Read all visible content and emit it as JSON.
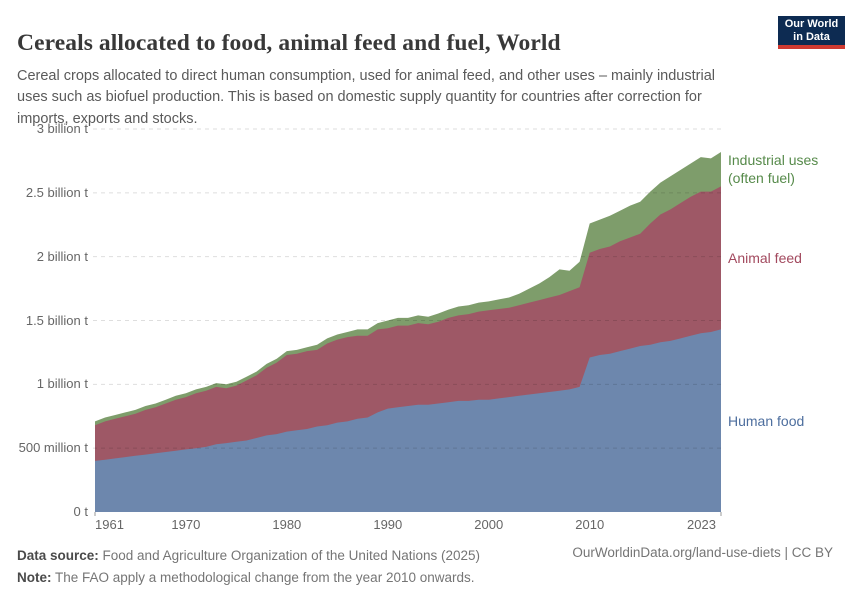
{
  "header": {
    "title": "Cereals allocated to food, animal feed and fuel, World",
    "subtitle": "Cereal crops allocated to direct human consumption, used for animal feed, and other uses – mainly industrial uses such as biofuel production. This is based on domestic supply quantity for countries after correction for imports, exports and stocks.",
    "logo": {
      "line1": "Our World",
      "line2": "in Data",
      "bg_color": "#0d2b52",
      "accent_color": "#cf3a31"
    }
  },
  "footer": {
    "source_label": "Data source:",
    "source_text": " Food and Agriculture Organization of the United Nations (2025)",
    "note_label": "Note:",
    "note_text": " The FAO apply a methodological change from the year 2010 onwards.",
    "link": "OurWorldinData.org/land-use-diets | CC BY"
  },
  "chart_data": {
    "type": "area",
    "stacked": true,
    "title": "Cereals allocated to food, animal feed and fuel, World",
    "unit": "tonnes",
    "grid": true,
    "legend_position": "right",
    "xlim": [
      1961,
      2023
    ],
    "ylim": [
      0,
      3
    ],
    "x_ticks": [
      1961,
      1970,
      1980,
      1990,
      2000,
      2010,
      2023
    ],
    "y_ticks": [
      {
        "v": 0,
        "label": "0 t"
      },
      {
        "v": 0.5,
        "label": "500 million t"
      },
      {
        "v": 1,
        "label": "1 billion t"
      },
      {
        "v": 1.5,
        "label": "1.5 billion t"
      },
      {
        "v": 2,
        "label": "2 billion t"
      },
      {
        "v": 2.5,
        "label": "2.5 billion t"
      },
      {
        "v": 3,
        "label": "3 billion t"
      }
    ],
    "x": [
      1961,
      1962,
      1963,
      1964,
      1965,
      1966,
      1967,
      1968,
      1969,
      1970,
      1971,
      1972,
      1973,
      1974,
      1975,
      1976,
      1977,
      1978,
      1979,
      1980,
      1981,
      1982,
      1983,
      1984,
      1985,
      1986,
      1987,
      1988,
      1989,
      1990,
      1991,
      1992,
      1993,
      1994,
      1995,
      1996,
      1997,
      1998,
      1999,
      2000,
      2001,
      2002,
      2003,
      2004,
      2005,
      2006,
      2007,
      2008,
      2009,
      2010,
      2011,
      2012,
      2013,
      2014,
      2015,
      2016,
      2017,
      2018,
      2019,
      2020,
      2021,
      2022,
      2023
    ],
    "series": [
      {
        "name": "Human food",
        "label_lines": [
          "Human food"
        ],
        "color": "#6d87ad",
        "label_color": "#4d6e9e",
        "unit": "billion t",
        "values": [
          0.4,
          0.41,
          0.42,
          0.43,
          0.44,
          0.45,
          0.46,
          0.47,
          0.48,
          0.49,
          0.5,
          0.51,
          0.53,
          0.54,
          0.55,
          0.56,
          0.58,
          0.6,
          0.61,
          0.63,
          0.64,
          0.65,
          0.67,
          0.68,
          0.7,
          0.71,
          0.73,
          0.74,
          0.78,
          0.81,
          0.82,
          0.83,
          0.84,
          0.84,
          0.85,
          0.86,
          0.87,
          0.87,
          0.88,
          0.88,
          0.89,
          0.9,
          0.91,
          0.92,
          0.93,
          0.94,
          0.95,
          0.96,
          0.98,
          1.21,
          1.23,
          1.24,
          1.26,
          1.28,
          1.3,
          1.31,
          1.33,
          1.34,
          1.36,
          1.38,
          1.4,
          1.41,
          1.43
        ]
      },
      {
        "name": "Animal feed",
        "label_lines": [
          "Animal feed"
        ],
        "color": "#9e5866",
        "label_color": "#a2495e",
        "unit": "billion t",
        "values": [
          0.28,
          0.3,
          0.31,
          0.32,
          0.33,
          0.35,
          0.36,
          0.38,
          0.4,
          0.41,
          0.43,
          0.44,
          0.45,
          0.43,
          0.44,
          0.47,
          0.49,
          0.53,
          0.56,
          0.6,
          0.6,
          0.61,
          0.6,
          0.64,
          0.65,
          0.66,
          0.65,
          0.64,
          0.65,
          0.63,
          0.64,
          0.63,
          0.64,
          0.63,
          0.64,
          0.66,
          0.67,
          0.68,
          0.69,
          0.7,
          0.7,
          0.7,
          0.71,
          0.72,
          0.73,
          0.74,
          0.75,
          0.77,
          0.78,
          0.82,
          0.83,
          0.84,
          0.86,
          0.87,
          0.88,
          0.95,
          1.0,
          1.03,
          1.06,
          1.09,
          1.11,
          1.1,
          1.12
        ]
      },
      {
        "name": "Industrial uses (often fuel)",
        "label_lines": [
          "Industrial uses",
          "(often fuel)"
        ],
        "color": "#7e9d6b",
        "label_color": "#568a4a",
        "unit": "billion t",
        "values": [
          0.03,
          0.03,
          0.03,
          0.03,
          0.03,
          0.03,
          0.03,
          0.03,
          0.03,
          0.03,
          0.03,
          0.03,
          0.03,
          0.03,
          0.03,
          0.03,
          0.03,
          0.03,
          0.03,
          0.03,
          0.03,
          0.03,
          0.04,
          0.04,
          0.04,
          0.04,
          0.05,
          0.05,
          0.05,
          0.06,
          0.06,
          0.06,
          0.06,
          0.06,
          0.065,
          0.065,
          0.07,
          0.07,
          0.07,
          0.07,
          0.075,
          0.08,
          0.09,
          0.11,
          0.13,
          0.16,
          0.2,
          0.16,
          0.2,
          0.23,
          0.23,
          0.24,
          0.24,
          0.25,
          0.25,
          0.25,
          0.25,
          0.26,
          0.26,
          0.26,
          0.27,
          0.26,
          0.27
        ]
      }
    ]
  }
}
